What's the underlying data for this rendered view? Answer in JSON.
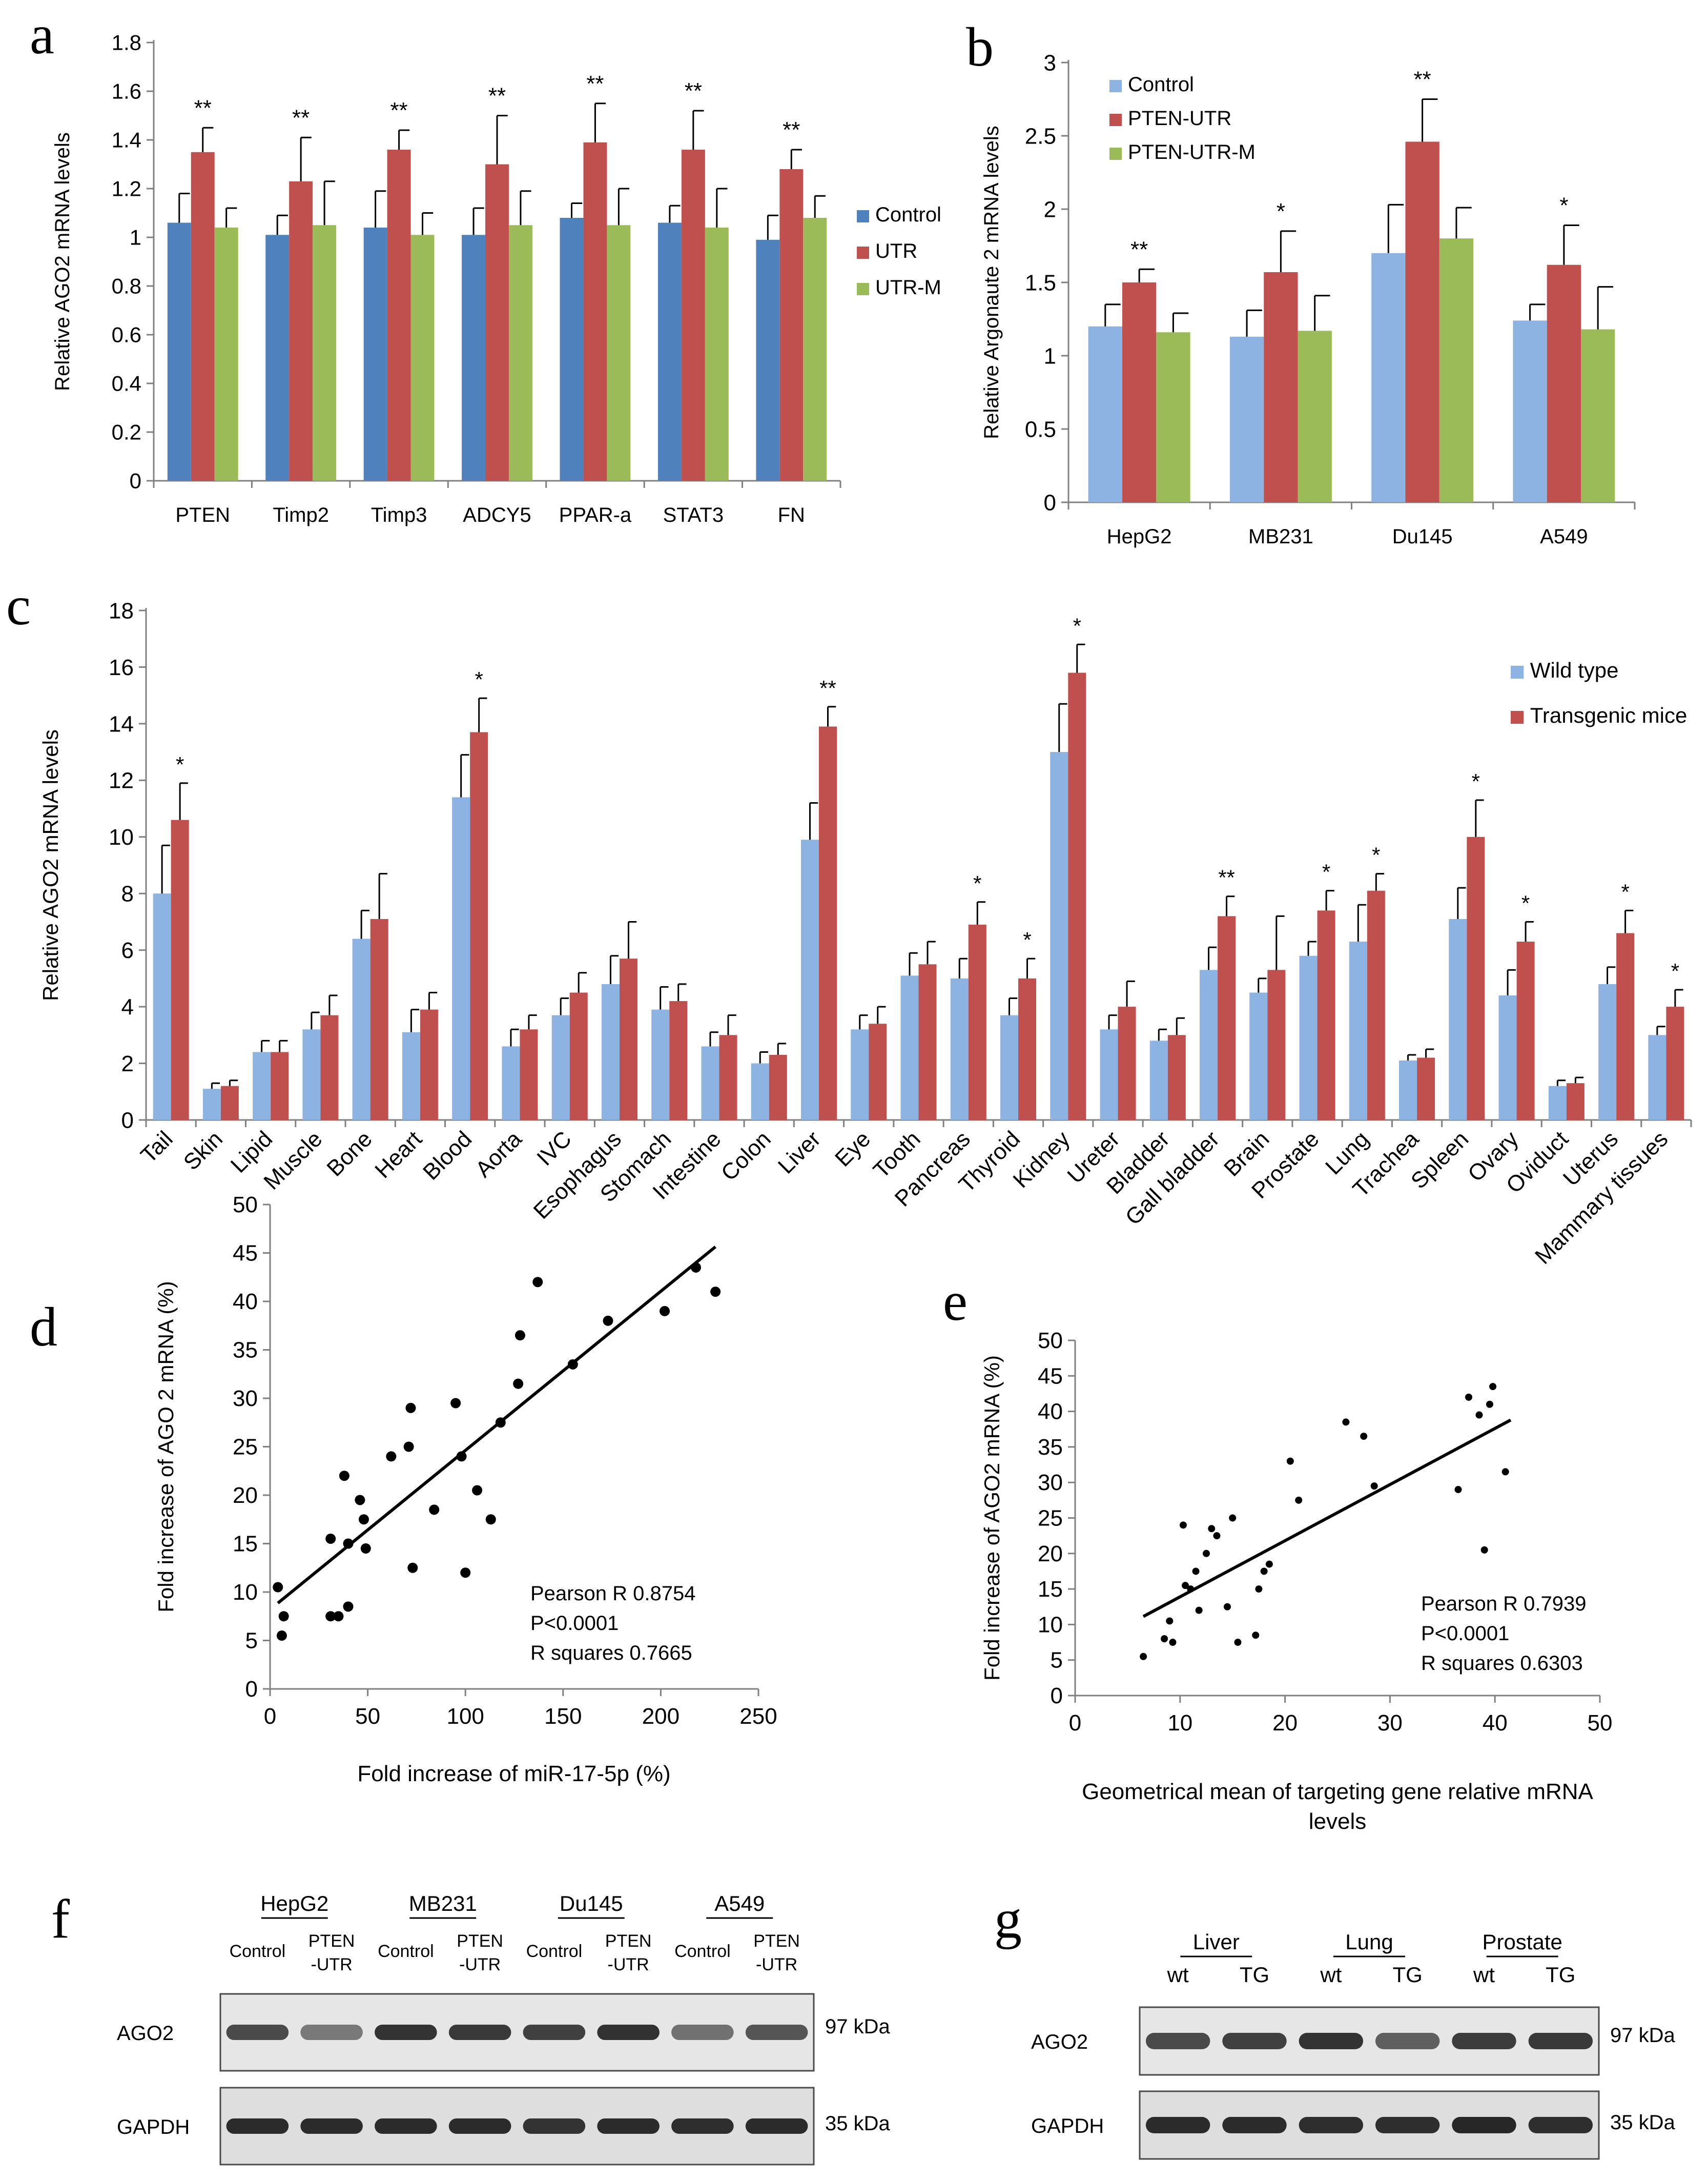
{
  "panel_labels": {
    "a": "a",
    "b": "b",
    "c": "c",
    "d": "d",
    "e": "e",
    "f": "f",
    "g": "g"
  },
  "colors": {
    "control_dark": "#4f81bd",
    "red": "#c0504d",
    "green": "#9bbb59",
    "light_blue": "#8db3e2",
    "axis": "#808080",
    "error": "#000000"
  },
  "chart_data": [
    {
      "id": "a",
      "type": "bar",
      "title": "",
      "xlabel": "",
      "ylabel": "Relative AGO2 mRNA levels",
      "ylim": [
        0,
        1.8
      ],
      "yticks": [
        0,
        0.2,
        0.4,
        0.6,
        0.8,
        1,
        1.2,
        1.4,
        1.6,
        1.8
      ],
      "ytick_labels": [
        "0",
        "0.2",
        "0.4",
        "0.6",
        "0.8",
        "1",
        "1.2",
        "1.4",
        "1.6",
        "1.8"
      ],
      "legend_position": "right",
      "categories": [
        "PTEN",
        "Timp2",
        "Timp3",
        "ADCY5",
        "PPAR-a",
        "STAT3",
        "FN"
      ],
      "series": [
        {
          "name": "Control",
          "color": "#4f81bd",
          "values": [
            1.06,
            1.01,
            1.04,
            1.01,
            1.08,
            1.06,
            0.99
          ],
          "errors": [
            0.12,
            0.08,
            0.15,
            0.11,
            0.06,
            0.07,
            0.1
          ]
        },
        {
          "name": "UTR",
          "color": "#c0504d",
          "values": [
            1.35,
            1.23,
            1.36,
            1.3,
            1.39,
            1.36,
            1.28
          ],
          "errors": [
            0.1,
            0.18,
            0.08,
            0.2,
            0.16,
            0.16,
            0.08
          ]
        },
        {
          "name": "UTR-M",
          "color": "#9bbb59",
          "values": [
            1.04,
            1.05,
            1.01,
            1.05,
            1.05,
            1.04,
            1.08
          ],
          "errors": [
            0.08,
            0.18,
            0.09,
            0.14,
            0.15,
            0.16,
            0.09
          ]
        }
      ],
      "significance": [
        "**",
        "**",
        "**",
        "**",
        "**",
        "**",
        "**"
      ]
    },
    {
      "id": "b",
      "type": "bar",
      "title": "",
      "xlabel": "",
      "ylabel": "Relative Argonaute 2 mRNA levels",
      "ylim": [
        0,
        3
      ],
      "yticks": [
        0,
        0.5,
        1,
        1.5,
        2,
        2.5,
        3
      ],
      "ytick_labels": [
        "0",
        "0.5",
        "1",
        "1.5",
        "2",
        "2.5",
        "3"
      ],
      "legend_position": "top-left",
      "categories": [
        "HepG2",
        "MB231",
        "Du145",
        "A549"
      ],
      "series": [
        {
          "name": "Control",
          "color": "#8db3e2",
          "values": [
            1.2,
            1.13,
            1.7,
            1.24
          ],
          "errors": [
            0.15,
            0.18,
            0.33,
            0.11
          ]
        },
        {
          "name": "PTEN-UTR",
          "color": "#c0504d",
          "values": [
            1.5,
            1.57,
            2.46,
            1.62
          ],
          "errors": [
            0.09,
            0.28,
            0.29,
            0.27
          ]
        },
        {
          "name": "PTEN-UTR-M",
          "color": "#9bbb59",
          "values": [
            1.16,
            1.17,
            1.8,
            1.18
          ],
          "errors": [
            0.13,
            0.24,
            0.21,
            0.29
          ]
        }
      ],
      "significance": [
        "**",
        "*",
        "**",
        "*"
      ]
    },
    {
      "id": "c",
      "type": "bar",
      "title": "",
      "xlabel": "",
      "ylabel": "Relative AGO2 mRNA levels",
      "ylim": [
        0,
        18
      ],
      "yticks": [
        0,
        2,
        4,
        6,
        8,
        10,
        12,
        14,
        16,
        18
      ],
      "ytick_labels": [
        "0",
        "2",
        "4",
        "6",
        "8",
        "10",
        "12",
        "14",
        "16",
        "18"
      ],
      "legend_position": "top-right",
      "categories": [
        "Tail",
        "Skin",
        "Lipid",
        "Muscle",
        "Bone",
        "Heart",
        "Blood",
        "Aorta",
        "IVC",
        "Esophagus",
        "Stomach",
        "Intestine",
        "Colon",
        "Liver",
        "Eye",
        "Tooth",
        "Pancreas",
        "Thyroid",
        "Kidney",
        "Ureter",
        "Bladder",
        "Gall bladder",
        "Brain",
        "Prostate",
        "Lung",
        "Trachea",
        "Spleen",
        "Ovary",
        "Oviduct",
        "Uterus",
        "Mammary tissues"
      ],
      "series": [
        {
          "name": "Wild type",
          "color": "#8db3e2",
          "values": [
            8.0,
            1.1,
            2.4,
            3.2,
            6.4,
            3.1,
            11.4,
            2.6,
            3.7,
            4.8,
            3.9,
            2.6,
            2.0,
            9.9,
            3.2,
            5.1,
            5.0,
            3.7,
            13.0,
            3.2,
            2.8,
            5.3,
            4.5,
            5.8,
            6.3,
            2.1,
            7.1,
            4.4,
            1.2,
            4.8,
            3.0
          ],
          "errors": [
            1.7,
            0.2,
            0.4,
            0.6,
            1.0,
            0.8,
            1.5,
            0.6,
            0.6,
            1.0,
            0.8,
            0.5,
            0.4,
            1.3,
            0.5,
            0.8,
            0.7,
            0.6,
            1.7,
            0.5,
            0.4,
            0.8,
            0.5,
            0.5,
            1.3,
            0.2,
            1.1,
            0.9,
            0.2,
            0.6,
            0.3
          ]
        },
        {
          "name": "Transgenic mice",
          "color": "#c0504d",
          "values": [
            10.6,
            1.2,
            2.4,
            3.7,
            7.1,
            3.9,
            13.7,
            3.2,
            4.5,
            5.7,
            4.2,
            3.0,
            2.3,
            13.9,
            3.4,
            5.5,
            6.9,
            5.0,
            15.8,
            4.0,
            3.0,
            7.2,
            5.3,
            7.4,
            8.1,
            2.2,
            10.0,
            6.3,
            1.3,
            6.6,
            4.0
          ],
          "errors": [
            1.3,
            0.2,
            0.4,
            0.7,
            1.6,
            0.6,
            1.2,
            0.5,
            0.7,
            1.3,
            0.6,
            0.7,
            0.4,
            0.7,
            0.6,
            0.8,
            0.8,
            0.7,
            1.0,
            0.9,
            0.6,
            0.7,
            1.9,
            0.7,
            0.6,
            0.3,
            1.3,
            0.7,
            0.2,
            0.8,
            0.6
          ]
        }
      ],
      "significance": [
        "*",
        "",
        "",
        "",
        "",
        "",
        "*",
        "",
        "",
        "",
        "",
        "",
        "",
        "**",
        "",
        "",
        "*",
        "*",
        "*",
        "",
        "",
        "**",
        "",
        "*",
        "*",
        "",
        "*",
        "*",
        "",
        "*",
        "*"
      ]
    },
    {
      "id": "d",
      "type": "scatter",
      "title": "",
      "xlabel": "Fold increase of miR-17-5p (%)",
      "ylabel": "Fold increase of AGO 2 mRNA (%)",
      "xlim": [
        0,
        250
      ],
      "ylim": [
        0,
        50
      ],
      "xticks": [
        0,
        50,
        100,
        150,
        200,
        250
      ],
      "xtick_labels": [
        "0",
        "50",
        "100",
        "150",
        "200",
        "250"
      ],
      "yticks": [
        0,
        5,
        10,
        15,
        20,
        25,
        30,
        35,
        40,
        45,
        50
      ],
      "ytick_labels": [
        "0",
        "5",
        "10",
        "15",
        "20",
        "25",
        "30",
        "35",
        "40",
        "45",
        "50"
      ],
      "points": [
        [
          4,
          10.5
        ],
        [
          6,
          5.5
        ],
        [
          7,
          7.5
        ],
        [
          31,
          15.5
        ],
        [
          31,
          7.5
        ],
        [
          35,
          7.5
        ],
        [
          38,
          22
        ],
        [
          40,
          8.5
        ],
        [
          40,
          15
        ],
        [
          46,
          19.5
        ],
        [
          48,
          17.5
        ],
        [
          49,
          14.5
        ],
        [
          62,
          24
        ],
        [
          71,
          25
        ],
        [
          72,
          29
        ],
        [
          73,
          12.5
        ],
        [
          84,
          18.5
        ],
        [
          95,
          29.5
        ],
        [
          98,
          24
        ],
        [
          100,
          12
        ],
        [
          106,
          20.5
        ],
        [
          113,
          17.5
        ],
        [
          118,
          27.5
        ],
        [
          127,
          31.5
        ],
        [
          128,
          36.5
        ],
        [
          137,
          42
        ],
        [
          155,
          33.5
        ],
        [
          173,
          38
        ],
        [
          202,
          39
        ],
        [
          218,
          43.5
        ],
        [
          228,
          41
        ]
      ],
      "fit_line": {
        "slope": 0.1642,
        "intercept": 8.2,
        "x_range": [
          4,
          228
        ]
      },
      "annotations": [
        "Pearson R 0.8754",
        "P<0.0001",
        "R squares  0.7665"
      ]
    },
    {
      "id": "e",
      "type": "scatter",
      "title": "",
      "xlabel": "Geometrical mean of targeting gene relative mRNA levels",
      "ylabel": "Fold increase of AGO2 mRNA (%)",
      "xlim": [
        0,
        50
      ],
      "ylim": [
        0,
        50
      ],
      "xticks": [
        0,
        10,
        20,
        30,
        40,
        50
      ],
      "xtick_labels": [
        "0",
        "10",
        "20",
        "30",
        "40",
        "50"
      ],
      "yticks": [
        0,
        5,
        10,
        15,
        20,
        25,
        30,
        35,
        40,
        45,
        50
      ],
      "ytick_labels": [
        "0",
        "5",
        "10",
        "15",
        "20",
        "25",
        "30",
        "35",
        "40",
        "45",
        "50"
      ],
      "points": [
        [
          6.5,
          5.5
        ],
        [
          8.5,
          8
        ],
        [
          9,
          10.5
        ],
        [
          9.3,
          7.5
        ],
        [
          10.3,
          24
        ],
        [
          10.5,
          15.5
        ],
        [
          11,
          15
        ],
        [
          11.5,
          17.5
        ],
        [
          11.8,
          12
        ],
        [
          12.5,
          20
        ],
        [
          13,
          23.5
        ],
        [
          13.5,
          22.5
        ],
        [
          14.5,
          12.5
        ],
        [
          15,
          25
        ],
        [
          15.5,
          7.5
        ],
        [
          17.2,
          8.5
        ],
        [
          17.5,
          15
        ],
        [
          18,
          17.5
        ],
        [
          18.5,
          18.5
        ],
        [
          20.5,
          33
        ],
        [
          21.3,
          27.5
        ],
        [
          25.8,
          38.5
        ],
        [
          27.5,
          36.5
        ],
        [
          28.5,
          29.5
        ],
        [
          36.5,
          29
        ],
        [
          37.5,
          42
        ],
        [
          38.5,
          39.5
        ],
        [
          39,
          20.5
        ],
        [
          39.5,
          41
        ],
        [
          39.8,
          43.5
        ],
        [
          41,
          31.5
        ]
      ],
      "fit_line": {
        "slope": 0.79,
        "intercept": 6.0,
        "x_range": [
          6.5,
          41.5
        ]
      },
      "annotations": [
        "Pearson R 0.7939",
        "P<0.0001",
        "R squares  0.6303"
      ]
    }
  ],
  "blot_f": {
    "groups": [
      "HepG2",
      "MB231",
      "Du145",
      "A549"
    ],
    "lanes": [
      "Control",
      "PTEN\n-UTR",
      "Control",
      "PTEN\n-UTR",
      "Control",
      "PTEN\n-UTR",
      "Control",
      "PTEN\n-UTR"
    ],
    "rows": [
      {
        "name": "AGO2",
        "size": "97 kDa",
        "intensities": [
          0.72,
          0.45,
          0.85,
          0.82,
          0.78,
          0.86,
          0.5,
          0.66
        ]
      },
      {
        "name": "GAPDH",
        "size": "35 kDa",
        "intensities": [
          0.9,
          0.9,
          0.9,
          0.9,
          0.85,
          0.9,
          0.88,
          0.9
        ]
      }
    ]
  },
  "blot_g": {
    "groups": [
      "Liver",
      "Lung",
      "Prostate"
    ],
    "lanes": [
      "wt",
      "TG",
      "wt",
      "TG",
      "wt",
      "TG"
    ],
    "rows": [
      {
        "name": "AGO2",
        "size": "97 kDa",
        "intensities": [
          0.72,
          0.78,
          0.85,
          0.6,
          0.8,
          0.82
        ]
      },
      {
        "name": "GAPDH",
        "size": "35 kDa",
        "intensities": [
          0.9,
          0.9,
          0.88,
          0.88,
          0.92,
          0.88
        ]
      }
    ]
  }
}
